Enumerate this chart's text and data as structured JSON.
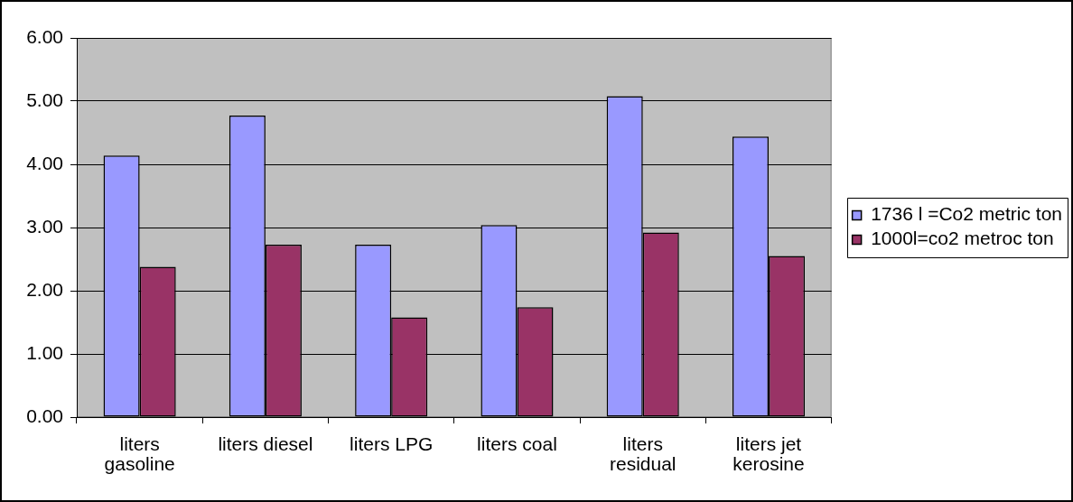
{
  "chart_data": {
    "type": "bar",
    "categories": [
      "liters gasoline",
      "liters diesel",
      "liters LPG",
      "liters coal",
      "liters residual",
      "liters jet kerosine"
    ],
    "series": [
      {
        "name": "1736 l =Co2 metric ton",
        "color": "#9999ff",
        "values": [
          4.14,
          4.77,
          2.73,
          3.04,
          5.08,
          4.44
        ]
      },
      {
        "name": "1000l=co2 metroc ton",
        "color": "#993366",
        "values": [
          2.38,
          2.73,
          1.58,
          1.74,
          2.92,
          2.55
        ]
      }
    ],
    "ylim": [
      0,
      6
    ],
    "yticks": [
      {
        "value": 0,
        "label": "0.00"
      },
      {
        "value": 1,
        "label": "1.00"
      },
      {
        "value": 2,
        "label": "2.00"
      },
      {
        "value": 3,
        "label": "3.00"
      },
      {
        "value": 4,
        "label": "4.00"
      },
      {
        "value": 5,
        "label": "5.00"
      },
      {
        "value": 6,
        "label": "6.00"
      }
    ],
    "grid": "y",
    "legend": "right"
  }
}
